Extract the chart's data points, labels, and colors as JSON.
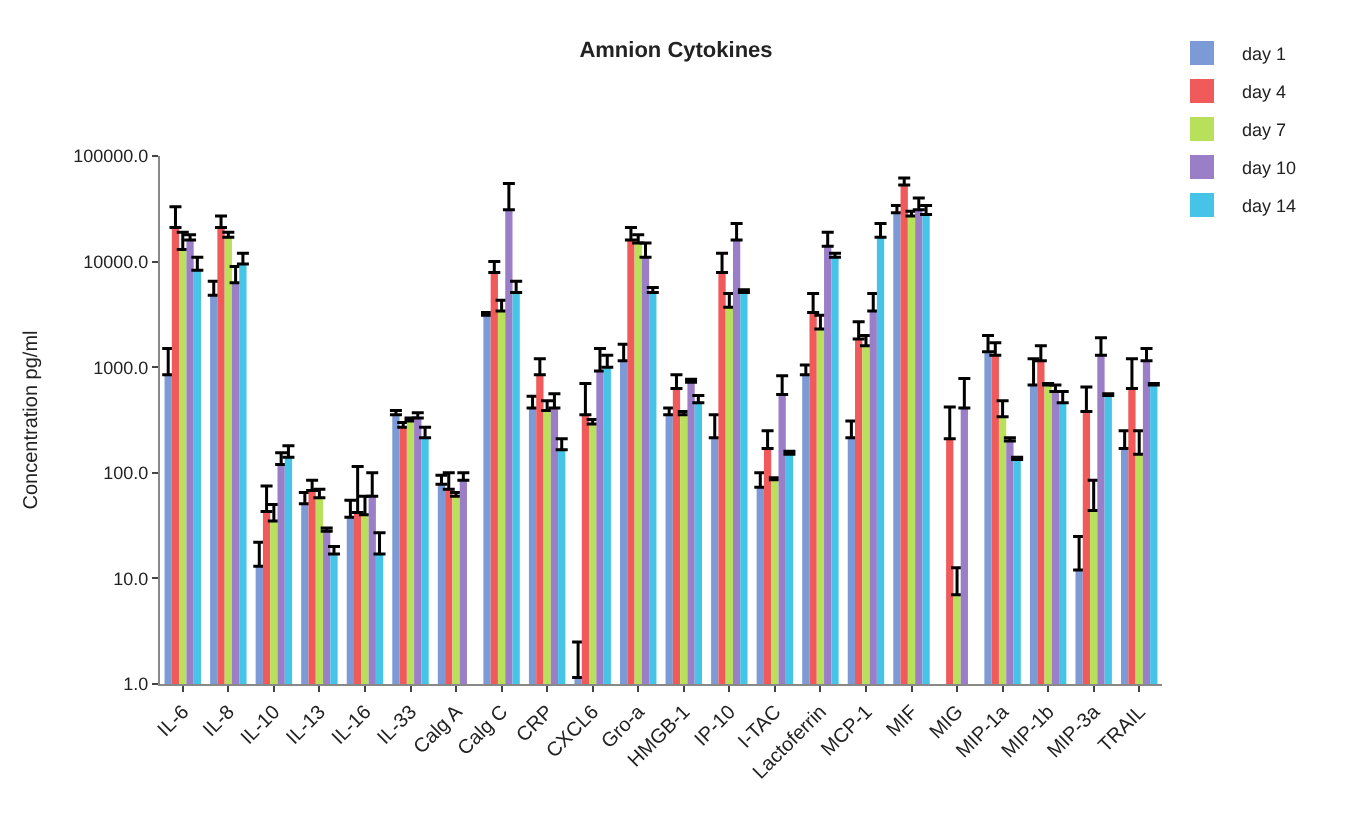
{
  "chart_data": {
    "type": "bar",
    "title": "Amnion Cytokines",
    "ylabel": "Concentration pg/ml",
    "log": true,
    "legend": "top right",
    "categories": [
      "IL-6",
      "IL-8",
      "IL-10",
      "IL-13",
      "IL-16",
      "IL-33",
      "Calg A",
      "Calg C",
      "CRP",
      "CXCL6",
      "Gro-a",
      "HMGB-1",
      "IP-10",
      "I-TAC",
      "Lactoferrin",
      "MCP-1",
      "MIF",
      "MIG",
      "MIP-1a",
      "MIP-1b",
      "MIP-3a",
      "TRAIL"
    ],
    "ylim": [
      1,
      100000
    ],
    "yticks": [
      {
        "value": 1,
        "label": "1.0"
      },
      {
        "value": 10,
        "label": "10.0"
      },
      {
        "value": 100,
        "label": "100.0"
      },
      {
        "value": 1000,
        "label": "1000.0"
      },
      {
        "value": 10000,
        "label": "10000.0"
      },
      {
        "value": 100000,
        "label": "100000.0"
      }
    ],
    "series": [
      {
        "name": "day 1",
        "color": "#7b9ad6",
        "values": [
          850,
          4800,
          13,
          51,
          38,
          355,
          78,
          3100,
          410,
          1.15,
          1150,
          355,
          215,
          73,
          850,
          215,
          29000,
          null,
          1400,
          680,
          12,
          170
        ],
        "errors": [
          [
            850,
            1500
          ],
          [
            4800,
            6500
          ],
          [
            13,
            22
          ],
          [
            51,
            65
          ],
          [
            38,
            55
          ],
          [
            355,
            390
          ],
          [
            78,
            95
          ],
          [
            3100,
            3300
          ],
          [
            410,
            530
          ],
          [
            1.15,
            2.5
          ],
          [
            1150,
            1650
          ],
          [
            355,
            410
          ],
          [
            215,
            355
          ],
          [
            73,
            100
          ],
          [
            850,
            1050
          ],
          [
            215,
            310
          ],
          [
            29000,
            34000
          ],
          null,
          [
            1400,
            2000
          ],
          [
            680,
            1200
          ],
          [
            12,
            25
          ],
          [
            170,
            250
          ]
        ]
      },
      {
        "name": "day 4",
        "color": "#f05a5a",
        "values": [
          21000,
          21000,
          43,
          68,
          42,
          270,
          70,
          7900,
          850,
          355,
          16000,
          630,
          7900,
          170,
          3300,
          1850,
          53000,
          210,
          1300,
          1150,
          380,
          630
        ],
        "errors": [
          [
            21000,
            33000
          ],
          [
            21000,
            27000
          ],
          [
            43,
            75
          ],
          [
            68,
            85
          ],
          [
            42,
            115
          ],
          [
            270,
            300
          ],
          [
            70,
            100
          ],
          [
            7900,
            10000
          ],
          [
            850,
            1200
          ],
          [
            355,
            700
          ],
          [
            16000,
            21000
          ],
          [
            630,
            850
          ],
          [
            7900,
            12000
          ],
          [
            170,
            250
          ],
          [
            3300,
            5000
          ],
          [
            1850,
            2700
          ],
          [
            53000,
            62000
          ],
          [
            210,
            420
          ],
          [
            1300,
            1700
          ],
          [
            1150,
            1600
          ],
          [
            380,
            650
          ],
          [
            630,
            1200
          ]
        ]
      },
      {
        "name": "day 7",
        "color": "#b8e05a",
        "values": [
          13000,
          17000,
          35,
          58,
          40,
          310,
          60,
          3400,
          390,
          290,
          15000,
          355,
          3700,
          86,
          2300,
          1600,
          27000,
          7,
          340,
          680,
          44,
          150
        ],
        "errors": [
          [
            13000,
            19000
          ],
          [
            17000,
            19000
          ],
          [
            35,
            50
          ],
          [
            58,
            70
          ],
          [
            40,
            60
          ],
          [
            310,
            330
          ],
          [
            60,
            65
          ],
          [
            3400,
            4300
          ],
          [
            390,
            480
          ],
          [
            290,
            320
          ],
          [
            15000,
            18000
          ],
          [
            355,
            380
          ],
          [
            3700,
            5000
          ],
          [
            86,
            90
          ],
          [
            2300,
            3100
          ],
          [
            1600,
            2000
          ],
          [
            27000,
            30000
          ],
          [
            7,
            12.6
          ],
          [
            340,
            480
          ],
          [
            680,
            700
          ],
          [
            44,
            85
          ],
          [
            150,
            250
          ]
        ]
      },
      {
        "name": "day 10",
        "color": "#9a7fc8",
        "values": [
          16000,
          6300,
          120,
          28,
          60,
          330,
          85,
          31000,
          410,
          920,
          11000,
          720,
          16000,
          550,
          14000,
          3400,
          31000,
          410,
          200,
          590,
          1300,
          1150
        ],
        "errors": [
          [
            16000,
            18000
          ],
          [
            6300,
            9000
          ],
          [
            120,
            155
          ],
          [
            28,
            30
          ],
          [
            60,
            100
          ],
          [
            330,
            370
          ],
          [
            85,
            100
          ],
          [
            31000,
            55000
          ],
          [
            410,
            560
          ],
          [
            920,
            1500
          ],
          [
            11000,
            15000
          ],
          [
            720,
            770
          ],
          [
            16000,
            23000
          ],
          [
            550,
            830
          ],
          [
            14000,
            19000
          ],
          [
            3400,
            5000
          ],
          [
            31000,
            40000
          ],
          [
            410,
            780
          ],
          [
            200,
            215
          ],
          [
            590,
            680
          ],
          [
            1300,
            1900
          ],
          [
            1150,
            1500
          ]
        ]
      },
      {
        "name": "day 14",
        "color": "#45c4e8",
        "values": [
          8300,
          9500,
          140,
          17,
          17,
          215,
          null,
          5100,
          165,
          1000,
          5100,
          460,
          5100,
          150,
          11000,
          17000,
          28000,
          null,
          134,
          460,
          540,
          680
        ],
        "errors": [
          [
            8300,
            11000
          ],
          [
            9500,
            12000
          ],
          [
            140,
            180
          ],
          [
            17,
            20
          ],
          [
            17,
            27
          ],
          [
            215,
            270
          ],
          null,
          [
            5100,
            6500
          ],
          [
            165,
            210
          ],
          [
            1000,
            1300
          ],
          [
            5100,
            5700
          ],
          [
            460,
            540
          ],
          [
            5100,
            5400
          ],
          [
            150,
            160
          ],
          [
            11000,
            12000
          ],
          [
            17000,
            23000
          ],
          [
            28000,
            34000
          ],
          null,
          [
            134,
            140
          ],
          [
            460,
            590
          ],
          [
            540,
            560
          ],
          [
            680,
            700
          ]
        ]
      }
    ]
  }
}
